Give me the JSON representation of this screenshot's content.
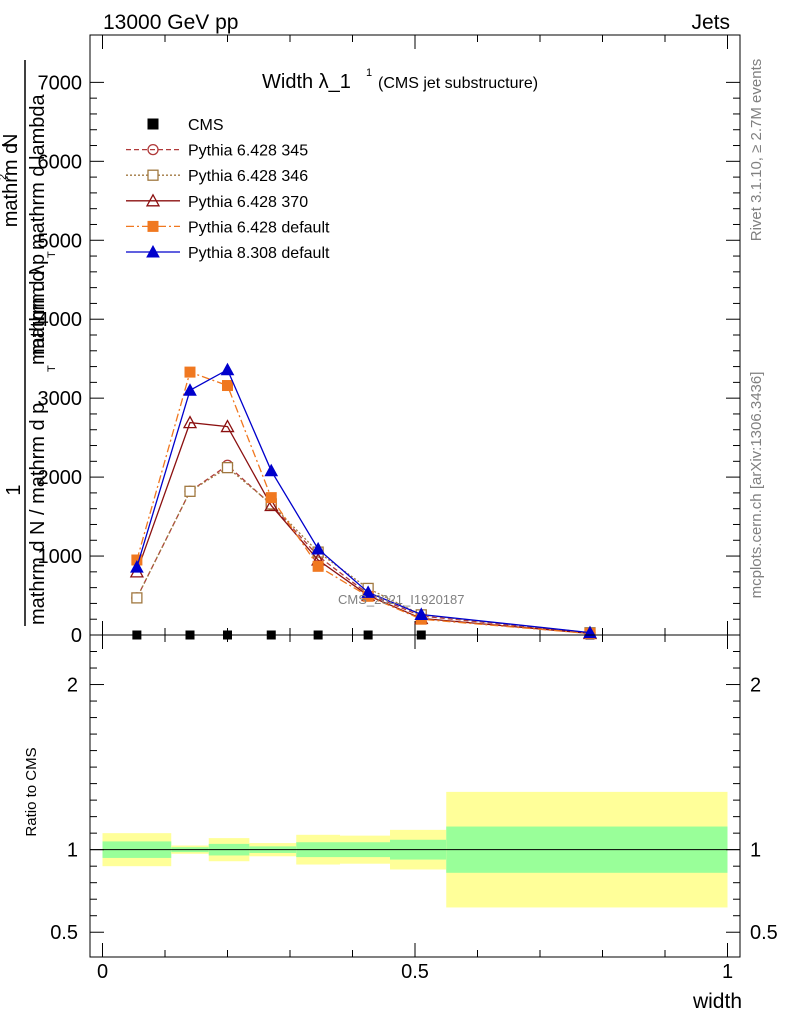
{
  "header": {
    "energy_label": "13000 GeV pp",
    "category_label": "Jets"
  },
  "side_labels": {
    "rivet": "Rivet 3.1.10, ≥ 2.7M events",
    "mcplots": "mcplots.cern.ch [arXiv:1306.3436]"
  },
  "chart_data": [
    {
      "type": "line",
      "title": "Width λ_1",
      "title_sup": "1",
      "subtitle": "(CMS jet substructure)",
      "watermark": "CMS_2021_I1920187",
      "ylabel_parts": {
        "one": "1",
        "num": "mathrm d N",
        "den": "mathrm d N / mathrm d p",
        "den_sub": "T",
        "den_tail": " mathrm d λ",
        "frac2_num": "mathrm d",
        "frac2_num_sup": "2",
        "frac2_num_tail": "N",
        "frac2_den": "mathrm d p",
        "frac2_den_sub": "T",
        "frac2_den_tail": " mathrm d lambda"
      },
      "xlim": [
        -0.02,
        1.02
      ],
      "ylim": [
        0,
        7600
      ],
      "yticks": [
        0,
        1000,
        2000,
        3000,
        4000,
        5000,
        6000,
        7000
      ],
      "ytick_labels": [
        "0",
        "1000",
        "2000",
        "3000",
        "4000",
        "5000",
        "6000",
        "7000"
      ],
      "legend": {
        "placement": "top-left"
      },
      "x": [
        0.055,
        0.14,
        0.2,
        0.27,
        0.345,
        0.425,
        0.51,
        0.78
      ],
      "series": [
        {
          "name": "CMS",
          "color": "#000000",
          "marker": "square-filled",
          "dash": "none",
          "line": false,
          "values": [
            0,
            0,
            0,
            0,
            0,
            0,
            0,
            0
          ]
        },
        {
          "name": "Pythia 6.428 345",
          "color": "#b03a3a",
          "marker": "circle-open",
          "dash": "5,3",
          "line": true,
          "values": [
            470,
            1820,
            2150,
            1650,
            1000,
            520,
            240,
            25
          ]
        },
        {
          "name": "Pythia 6.428 346",
          "color": "#a07840",
          "marker": "square-open",
          "dash": "2,2",
          "line": true,
          "values": [
            470,
            1820,
            2120,
            1660,
            1050,
            590,
            255,
            28
          ]
        },
        {
          "name": "Pythia 6.428 370",
          "color": "#8b1010",
          "marker": "triangle-open",
          "dash": "none",
          "line": true,
          "values": [
            800,
            2690,
            2640,
            1640,
            950,
            500,
            210,
            20
          ]
        },
        {
          "name": "Pythia 6.428 default",
          "color": "#f07820",
          "marker": "square-filled",
          "dash": "8,3,2,3",
          "line": true,
          "values": [
            950,
            3330,
            3160,
            1740,
            870,
            490,
            200,
            18
          ]
        },
        {
          "name": "Pythia 8.308 default",
          "color": "#0000cc",
          "marker": "triangle-filled",
          "dash": "none",
          "line": true,
          "values": [
            860,
            3100,
            3360,
            2080,
            1090,
            540,
            260,
            30
          ]
        }
      ]
    },
    {
      "type": "area",
      "ylabel": "Ratio to CMS",
      "xlabel": "width",
      "xlim": [
        -0.02,
        1.02
      ],
      "ylim": [
        0.35,
        2.3
      ],
      "yticks": [
        0.5,
        1,
        2
      ],
      "ytick_labels": [
        "0.5",
        "1",
        "2"
      ],
      "xticks": [
        0,
        0.5,
        1
      ],
      "xtick_labels": [
        "0",
        "0.5",
        "1"
      ],
      "reference_line": 1,
      "bins": [
        {
          "low": 0.0,
          "high": 0.11,
          "inner": [
            0.95,
            1.05
          ],
          "outer": [
            0.9,
            1.1
          ]
        },
        {
          "low": 0.11,
          "high": 0.17,
          "inner": [
            0.985,
            1.015
          ],
          "outer": [
            0.975,
            1.025
          ]
        },
        {
          "low": 0.17,
          "high": 0.235,
          "inner": [
            0.965,
            1.035
          ],
          "outer": [
            0.93,
            1.07
          ]
        },
        {
          "low": 0.235,
          "high": 0.31,
          "inner": [
            0.98,
            1.02
          ],
          "outer": [
            0.96,
            1.04
          ]
        },
        {
          "low": 0.31,
          "high": 0.38,
          "inner": [
            0.955,
            1.045
          ],
          "outer": [
            0.91,
            1.09
          ]
        },
        {
          "low": 0.38,
          "high": 0.46,
          "inner": [
            0.955,
            1.045
          ],
          "outer": [
            0.915,
            1.085
          ]
        },
        {
          "low": 0.46,
          "high": 0.55,
          "inner": [
            0.94,
            1.06
          ],
          "outer": [
            0.88,
            1.12
          ]
        },
        {
          "low": 0.55,
          "high": 1.0,
          "inner": [
            0.86,
            1.14
          ],
          "outer": [
            0.65,
            1.35
          ]
        }
      ],
      "band_colors": {
        "inner": "#99ff99",
        "outer": "#ffff99"
      }
    }
  ]
}
